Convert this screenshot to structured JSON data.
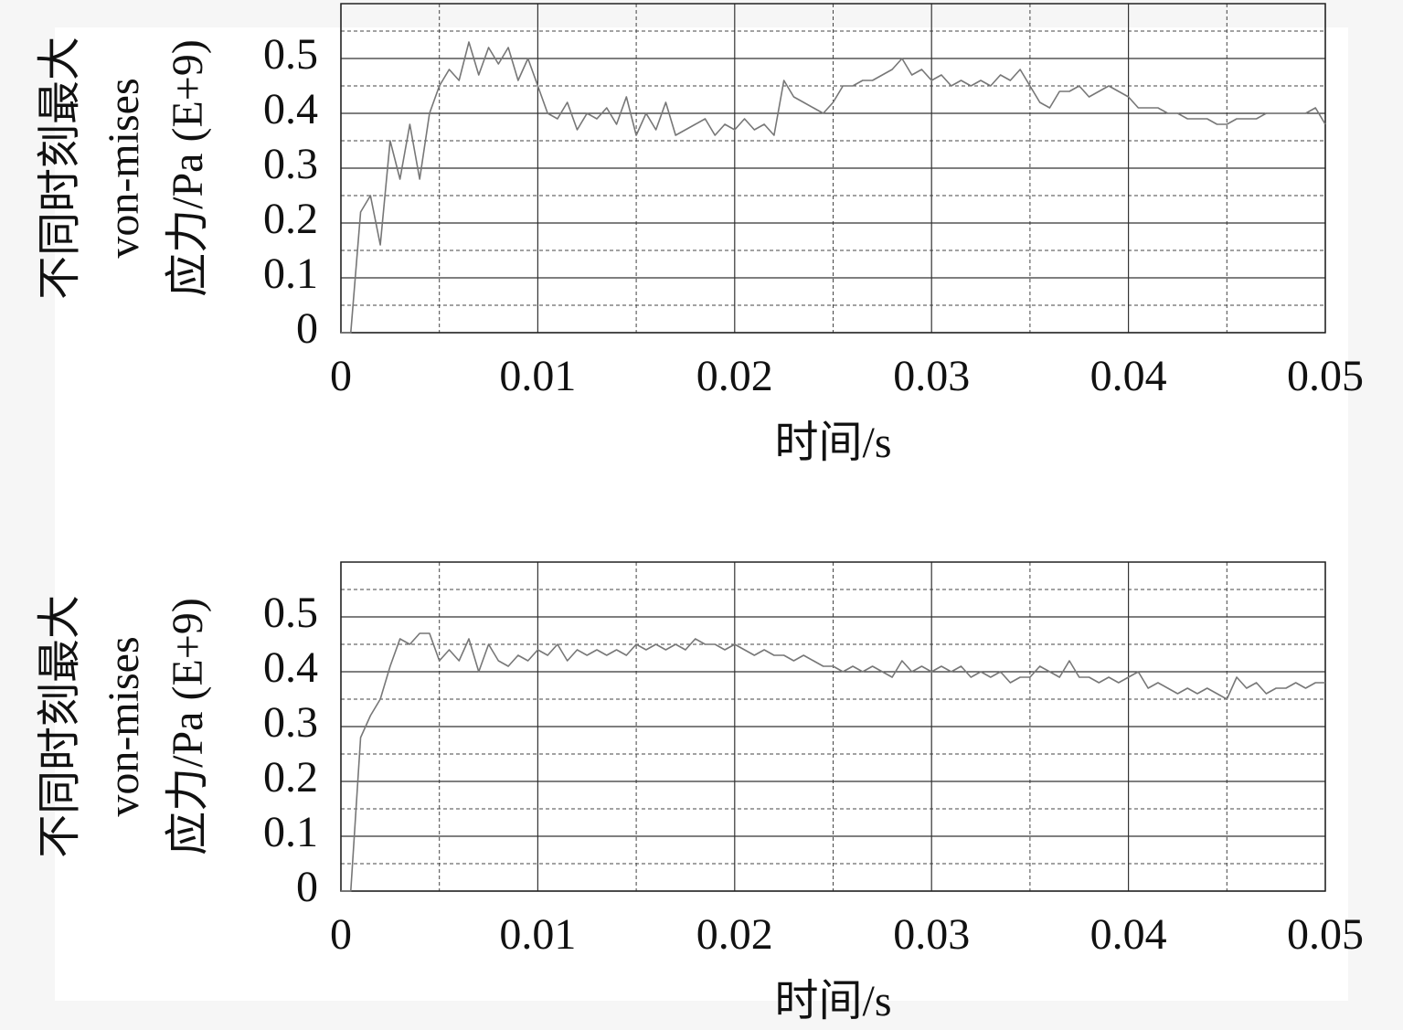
{
  "chart_data": [
    {
      "type": "line",
      "xlabel": "时间/s",
      "ylabel": [
        "不同时刻最大",
        "von-mises",
        "应力/Pa (E+9)"
      ],
      "x": [
        0,
        0.0005,
        0.001,
        0.0015,
        0.002,
        0.0025,
        0.003,
        0.0035,
        0.004,
        0.0045,
        0.005,
        0.0055,
        0.006,
        0.0065,
        0.007,
        0.0075,
        0.008,
        0.0085,
        0.009,
        0.0095,
        0.01,
        0.0105,
        0.011,
        0.0115,
        0.012,
        0.0125,
        0.013,
        0.0135,
        0.014,
        0.0145,
        0.015,
        0.0155,
        0.016,
        0.0165,
        0.017,
        0.0175,
        0.018,
        0.0185,
        0.019,
        0.0195,
        0.02,
        0.0205,
        0.021,
        0.0215,
        0.022,
        0.0225,
        0.023,
        0.0235,
        0.024,
        0.0245,
        0.025,
        0.0255,
        0.026,
        0.0265,
        0.027,
        0.0275,
        0.028,
        0.0285,
        0.029,
        0.0295,
        0.03,
        0.0305,
        0.031,
        0.0315,
        0.032,
        0.0325,
        0.033,
        0.0335,
        0.034,
        0.0345,
        0.035,
        0.0355,
        0.036,
        0.0365,
        0.037,
        0.0375,
        0.038,
        0.0385,
        0.039,
        0.0395,
        0.04,
        0.0405,
        0.041,
        0.0415,
        0.042,
        0.0425,
        0.043,
        0.0435,
        0.044,
        0.0445,
        0.045,
        0.0455,
        0.046,
        0.0465,
        0.047,
        0.0475,
        0.048,
        0.0485,
        0.049,
        0.0495,
        0.05
      ],
      "values": [
        0,
        0,
        0.22,
        0.25,
        0.16,
        0.35,
        0.28,
        0.38,
        0.28,
        0.4,
        0.45,
        0.48,
        0.46,
        0.53,
        0.47,
        0.52,
        0.49,
        0.52,
        0.46,
        0.5,
        0.45,
        0.4,
        0.39,
        0.42,
        0.37,
        0.4,
        0.39,
        0.41,
        0.38,
        0.43,
        0.36,
        0.4,
        0.37,
        0.42,
        0.36,
        0.37,
        0.38,
        0.39,
        0.36,
        0.38,
        0.37,
        0.39,
        0.37,
        0.38,
        0.36,
        0.46,
        0.43,
        0.42,
        0.41,
        0.4,
        0.42,
        0.45,
        0.45,
        0.46,
        0.46,
        0.47,
        0.48,
        0.5,
        0.47,
        0.48,
        0.46,
        0.47,
        0.45,
        0.46,
        0.45,
        0.46,
        0.45,
        0.47,
        0.46,
        0.48,
        0.45,
        0.42,
        0.41,
        0.44,
        0.44,
        0.45,
        0.43,
        0.44,
        0.45,
        0.44,
        0.43,
        0.41,
        0.41,
        0.41,
        0.4,
        0.4,
        0.39,
        0.39,
        0.39,
        0.38,
        0.38,
        0.39,
        0.39,
        0.39,
        0.4,
        0.4,
        0.4,
        0.4,
        0.4,
        0.41,
        0.38
      ],
      "color": "#777777",
      "xlim": [
        0,
        0.05
      ],
      "xticks": [
        0,
        0.01,
        0.02,
        0.03,
        0.04,
        0.05
      ],
      "ylim": [
        0,
        0.6
      ],
      "yticks": [
        0,
        0.1,
        0.2,
        0.3,
        0.4,
        0.5
      ],
      "grid": true
    },
    {
      "type": "line",
      "xlabel": "时间/s",
      "ylabel": [
        "不同时刻最大",
        "von-mises",
        "应力/Pa (E+9)"
      ],
      "x": [
        0,
        0.0005,
        0.001,
        0.0015,
        0.002,
        0.0025,
        0.003,
        0.0035,
        0.004,
        0.0045,
        0.005,
        0.0055,
        0.006,
        0.0065,
        0.007,
        0.0075,
        0.008,
        0.0085,
        0.009,
        0.0095,
        0.01,
        0.0105,
        0.011,
        0.0115,
        0.012,
        0.0125,
        0.013,
        0.0135,
        0.014,
        0.0145,
        0.015,
        0.0155,
        0.016,
        0.0165,
        0.017,
        0.0175,
        0.018,
        0.0185,
        0.019,
        0.0195,
        0.02,
        0.0205,
        0.021,
        0.0215,
        0.022,
        0.0225,
        0.023,
        0.0235,
        0.024,
        0.0245,
        0.025,
        0.0255,
        0.026,
        0.0265,
        0.027,
        0.0275,
        0.028,
        0.0285,
        0.029,
        0.0295,
        0.03,
        0.0305,
        0.031,
        0.0315,
        0.032,
        0.0325,
        0.033,
        0.0335,
        0.034,
        0.0345,
        0.035,
        0.0355,
        0.036,
        0.0365,
        0.037,
        0.0375,
        0.038,
        0.0385,
        0.039,
        0.0395,
        0.04,
        0.0405,
        0.041,
        0.0415,
        0.042,
        0.0425,
        0.043,
        0.0435,
        0.044,
        0.0445,
        0.045,
        0.0455,
        0.046,
        0.0465,
        0.047,
        0.0475,
        0.048,
        0.0485,
        0.049,
        0.0495,
        0.05
      ],
      "values": [
        0,
        0,
        0.28,
        0.32,
        0.35,
        0.41,
        0.46,
        0.45,
        0.47,
        0.47,
        0.42,
        0.44,
        0.42,
        0.46,
        0.4,
        0.45,
        0.42,
        0.41,
        0.43,
        0.42,
        0.44,
        0.43,
        0.45,
        0.42,
        0.44,
        0.43,
        0.44,
        0.43,
        0.44,
        0.43,
        0.45,
        0.44,
        0.45,
        0.44,
        0.45,
        0.44,
        0.46,
        0.45,
        0.45,
        0.44,
        0.45,
        0.44,
        0.43,
        0.44,
        0.43,
        0.43,
        0.42,
        0.43,
        0.42,
        0.41,
        0.41,
        0.4,
        0.41,
        0.4,
        0.41,
        0.4,
        0.39,
        0.42,
        0.4,
        0.41,
        0.4,
        0.41,
        0.4,
        0.41,
        0.39,
        0.4,
        0.39,
        0.4,
        0.38,
        0.39,
        0.39,
        0.41,
        0.4,
        0.39,
        0.42,
        0.39,
        0.39,
        0.38,
        0.39,
        0.38,
        0.39,
        0.4,
        0.37,
        0.38,
        0.37,
        0.36,
        0.37,
        0.36,
        0.37,
        0.36,
        0.35,
        0.39,
        0.37,
        0.38,
        0.36,
        0.37,
        0.37,
        0.38,
        0.37,
        0.38,
        0.38
      ],
      "color": "#777777",
      "xlim": [
        0,
        0.05
      ],
      "xticks": [
        0,
        0.01,
        0.02,
        0.03,
        0.04,
        0.05
      ],
      "ylim": [
        0,
        0.6
      ],
      "yticks": [
        0,
        0.1,
        0.2,
        0.3,
        0.4,
        0.5
      ],
      "grid": true
    }
  ]
}
